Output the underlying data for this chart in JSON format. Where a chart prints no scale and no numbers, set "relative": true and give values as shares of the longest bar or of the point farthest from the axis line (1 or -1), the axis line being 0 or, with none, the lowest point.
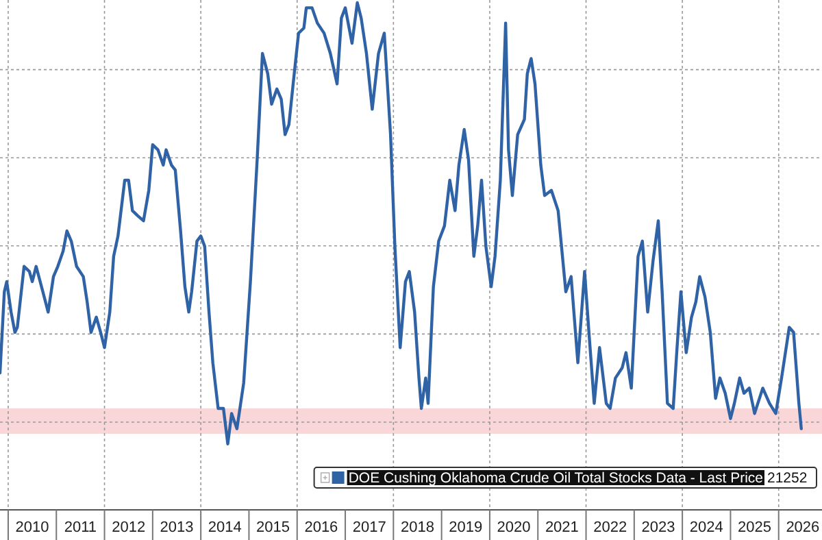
{
  "chart_data": {
    "type": "line",
    "relative": true,
    "x": [
      2009.83,
      2009.92,
      2009.97,
      2010.06,
      2010.14,
      2010.19,
      2010.33,
      2010.44,
      2010.5,
      2010.58,
      2010.72,
      2010.83,
      2010.94,
      2011.03,
      2011.14,
      2011.22,
      2011.31,
      2011.42,
      2011.56,
      2011.64,
      2011.72,
      2011.83,
      2011.92,
      2012.0,
      2012.11,
      2012.19,
      2012.28,
      2012.42,
      2012.5,
      2012.58,
      2012.69,
      2012.81,
      2012.92,
      2013.0,
      2013.11,
      2013.22,
      2013.28,
      2013.39,
      2013.47,
      2013.58,
      2013.67,
      2013.75,
      2013.81,
      2013.92,
      2014.0,
      2014.08,
      2014.17,
      2014.25,
      2014.36,
      2014.47,
      2014.56,
      2014.64,
      2014.75,
      2014.89,
      2015.03,
      2015.17,
      2015.28,
      2015.39,
      2015.47,
      2015.58,
      2015.67,
      2015.75,
      2015.83,
      2015.94,
      2016.03,
      2016.14,
      2016.19,
      2016.31,
      2016.42,
      2016.56,
      2016.69,
      2016.83,
      2016.92,
      2017.0,
      2017.14,
      2017.25,
      2017.33,
      2017.44,
      2017.56,
      2017.69,
      2017.81,
      2017.94,
      2018.03,
      2018.14,
      2018.25,
      2018.33,
      2018.44,
      2018.53,
      2018.58,
      2018.67,
      2018.72,
      2018.83,
      2018.94,
      2019.06,
      2019.17,
      2019.28,
      2019.36,
      2019.47,
      2019.56,
      2019.67,
      2019.75,
      2019.83,
      2019.92,
      2020.03,
      2020.11,
      2020.22,
      2020.33,
      2020.39,
      2020.47,
      2020.58,
      2020.72,
      2020.78,
      2020.86,
      2020.94,
      2021.06,
      2021.14,
      2021.28,
      2021.42,
      2021.58,
      2021.69,
      2021.83,
      2021.97,
      2022.06,
      2022.17,
      2022.28,
      2022.42,
      2022.5,
      2022.61,
      2022.75,
      2022.83,
      2022.94,
      2023.08,
      2023.17,
      2023.28,
      2023.39,
      2023.5,
      2023.58,
      2023.69,
      2023.81,
      2023.89,
      2023.97,
      2024.08,
      2024.19,
      2024.28,
      2024.36,
      2024.47,
      2024.58,
      2024.69,
      2024.78,
      2024.89,
      2025.0,
      2025.08,
      2025.19,
      2025.28,
      2025.39,
      2025.5,
      2025.67,
      2025.81,
      2025.94,
      2026.06,
      2026.22,
      2026.31,
      2026.42,
      2026.47
    ],
    "series": [
      {
        "name": "DOE Cushing Oklahoma Crude Oil Total Stocks Data - Last Price",
        "color": "#2f63a6",
        "values": [
          0.27,
          0.43,
          0.45,
          0.39,
          0.35,
          0.36,
          0.48,
          0.47,
          0.45,
          0.48,
          0.43,
          0.39,
          0.46,
          0.48,
          0.51,
          0.55,
          0.53,
          0.48,
          0.46,
          0.41,
          0.35,
          0.38,
          0.35,
          0.32,
          0.39,
          0.5,
          0.54,
          0.65,
          0.65,
          0.59,
          0.58,
          0.57,
          0.63,
          0.72,
          0.71,
          0.68,
          0.71,
          0.68,
          0.67,
          0.55,
          0.44,
          0.39,
          0.43,
          0.53,
          0.54,
          0.52,
          0.39,
          0.29,
          0.2,
          0.2,
          0.13,
          0.19,
          0.16,
          0.25,
          0.45,
          0.69,
          0.9,
          0.86,
          0.8,
          0.83,
          0.81,
          0.74,
          0.76,
          0.86,
          0.94,
          0.95,
          0.99,
          0.99,
          0.96,
          0.94,
          0.9,
          0.84,
          0.97,
          0.99,
          0.92,
          1,
          0.97,
          0.9,
          0.79,
          0.9,
          0.94,
          0.74,
          0.52,
          0.32,
          0.45,
          0.47,
          0.39,
          0.26,
          0.2,
          0.26,
          0.21,
          0.44,
          0.53,
          0.56,
          0.65,
          0.59,
          0.68,
          0.75,
          0.69,
          0.5,
          0.56,
          0.65,
          0.52,
          0.44,
          0.5,
          0.65,
          0.96,
          0.71,
          0.62,
          0.74,
          0.77,
          0.86,
          0.89,
          0.84,
          0.68,
          0.62,
          0.63,
          0.59,
          0.43,
          0.46,
          0.29,
          0.47,
          0.35,
          0.21,
          0.32,
          0.21,
          0.2,
          0.26,
          0.28,
          0.31,
          0.24,
          0.5,
          0.53,
          0.39,
          0.49,
          0.57,
          0.43,
          0.21,
          0.2,
          0.32,
          0.43,
          0.31,
          0.38,
          0.41,
          0.46,
          0.42,
          0.35,
          0.22,
          0.26,
          0.23,
          0.18,
          0.21,
          0.26,
          0.23,
          0.24,
          0.19,
          0.24,
          0.21,
          0.19,
          0.26,
          0.36,
          0.35,
          0.21,
          0.16
        ]
      }
    ],
    "xlim": [
      2009.83,
      2026.9
    ],
    "xticks": [
      {
        "value": 2010.5,
        "label": "2010"
      },
      {
        "value": 2011.5,
        "label": "2011"
      },
      {
        "value": 2012.5,
        "label": "2012"
      },
      {
        "value": 2013.5,
        "label": "2013"
      },
      {
        "value": 2014.5,
        "label": "2014"
      },
      {
        "value": 2015.5,
        "label": "2015"
      },
      {
        "value": 2016.5,
        "label": "2016"
      },
      {
        "value": 2017.5,
        "label": "2017"
      },
      {
        "value": 2018.5,
        "label": "2018"
      },
      {
        "value": 2019.5,
        "label": "2019"
      },
      {
        "value": 2020.5,
        "label": "2020"
      },
      {
        "value": 2021.5,
        "label": "2021"
      },
      {
        "value": 2022.5,
        "label": "2022"
      },
      {
        "value": 2023.5,
        "label": "2023"
      },
      {
        "value": 2024.5,
        "label": "2024"
      },
      {
        "value": 2025.5,
        "label": "2025"
      },
      {
        "value": 2026.5,
        "label": "2026"
      }
    ],
    "bands": [
      {
        "axis": "y",
        "from": 0.15,
        "to": 0.2,
        "color": "#f9d6d8"
      }
    ],
    "annotations": [
      "21252"
    ],
    "grid": true,
    "legend": "bottom right",
    "line_style": "solid"
  }
}
